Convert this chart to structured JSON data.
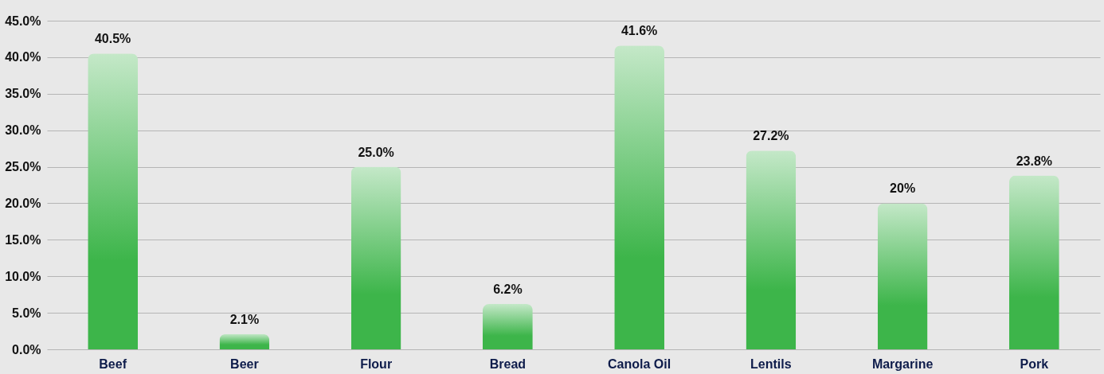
{
  "chart_data": {
    "type": "bar",
    "categories": [
      "Beef",
      "Beer",
      "Flour",
      "Bread",
      "Canola Oil",
      "Lentils",
      "Margarine",
      "Pork"
    ],
    "values": [
      40.5,
      2.1,
      25.0,
      6.2,
      41.6,
      27.2,
      20,
      23.8
    ],
    "value_labels": [
      "40.5%",
      "2.1%",
      "25.0%",
      "6.2%",
      "41.6%",
      "27.2%",
      "20%",
      "23.8%"
    ],
    "color": "#3db54a",
    "ylim": [
      0,
      45
    ],
    "yticks": [
      {
        "value": 0,
        "label": "0.0%"
      },
      {
        "value": 5,
        "label": "5.0%"
      },
      {
        "value": 10,
        "label": "10.0%"
      },
      {
        "value": 15,
        "label": "15.0%"
      },
      {
        "value": 20,
        "label": "20.0%"
      },
      {
        "value": 25,
        "label": "25.0%"
      },
      {
        "value": 30,
        "label": "30.0%"
      },
      {
        "value": 35,
        "label": "35.0%"
      },
      {
        "value": 40,
        "label": "40.0%"
      },
      {
        "value": 45,
        "label": "45.0%"
      }
    ],
    "grid": "y"
  }
}
